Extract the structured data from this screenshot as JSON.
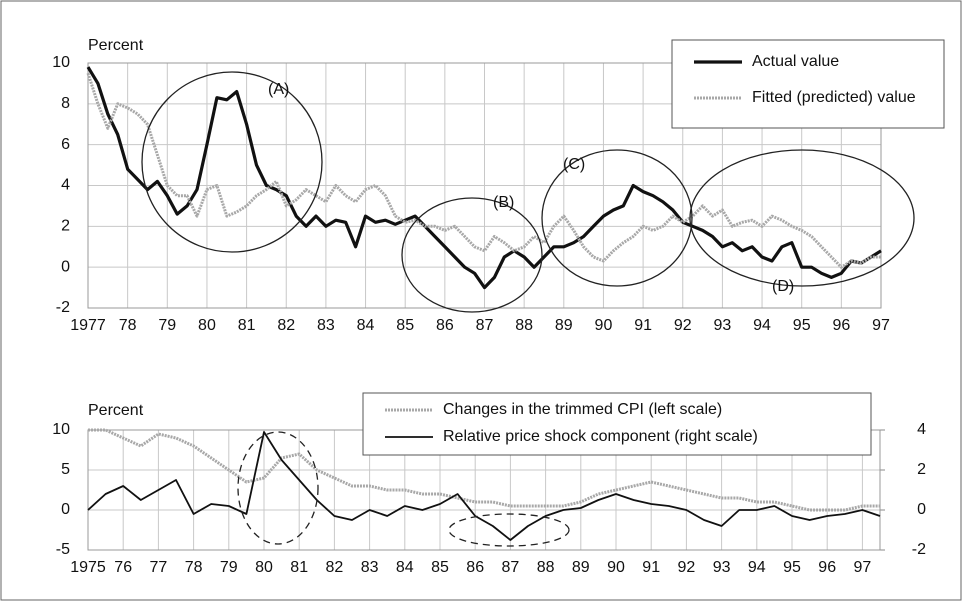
{
  "chart_data": [
    {
      "type": "line",
      "ylabel": "Percent",
      "x": [
        1977,
        1977.25,
        1977.5,
        1977.75,
        1978,
        1978.25,
        1978.5,
        1978.75,
        1979,
        1979.25,
        1979.5,
        1979.75,
        1980,
        1980.25,
        1980.5,
        1980.75,
        1981,
        1981.25,
        1981.5,
        1981.75,
        1982,
        1982.25,
        1982.5,
        1982.75,
        1983,
        1983.25,
        1983.5,
        1983.75,
        1984,
        1984.25,
        1984.5,
        1984.75,
        1985,
        1985.25,
        1985.5,
        1985.75,
        1986,
        1986.25,
        1986.5,
        1986.75,
        1987,
        1987.25,
        1987.5,
        1987.75,
        1988,
        1988.25,
        1988.5,
        1988.75,
        1989,
        1989.25,
        1989.5,
        1989.75,
        1990,
        1990.25,
        1990.5,
        1990.75,
        1991,
        1991.25,
        1991.5,
        1991.75,
        1992,
        1992.25,
        1992.5,
        1992.75,
        1993,
        1993.25,
        1993.5,
        1993.75,
        1994,
        1994.25,
        1994.5,
        1994.75,
        1995,
        1995.25,
        1995.5,
        1995.75,
        1996,
        1996.25,
        1996.5,
        1996.75,
        1997
      ],
      "series": [
        {
          "name": "Actual value",
          "color": "#111111",
          "width": 3.2,
          "values": [
            9.8,
            9.0,
            7.5,
            6.5,
            4.8,
            4.3,
            3.8,
            4.2,
            3.5,
            2.6,
            3.0,
            3.8,
            6.0,
            8.3,
            8.2,
            8.6,
            7.0,
            5.0,
            4.0,
            3.8,
            3.5,
            2.5,
            2.0,
            2.5,
            2.0,
            2.3,
            2.2,
            1.0,
            2.5,
            2.2,
            2.3,
            2.1,
            2.3,
            2.5,
            2.0,
            1.5,
            1.0,
            0.5,
            0.0,
            -0.3,
            -1.0,
            -0.5,
            0.5,
            0.8,
            0.5,
            0.0,
            0.5,
            1.0,
            1.0,
            1.2,
            1.5,
            2.0,
            2.5,
            2.8,
            3.0,
            4.0,
            3.7,
            3.5,
            3.2,
            2.8,
            2.2,
            2.0,
            1.8,
            1.5,
            1.0,
            1.2,
            0.8,
            1.0,
            0.5,
            0.3,
            1.0,
            1.2,
            0.0,
            0.0,
            -0.3,
            -0.5,
            -0.3,
            0.3,
            0.2,
            0.5,
            0.8
          ]
        },
        {
          "name": "Fitted (predicted) value",
          "color": "#a8a8a8",
          "width": 3,
          "values": [
            9.5,
            8.0,
            6.8,
            8.0,
            7.8,
            7.5,
            7.0,
            5.5,
            4.0,
            3.5,
            3.5,
            2.5,
            3.8,
            4.0,
            2.5,
            2.7,
            3.0,
            3.5,
            3.8,
            4.2,
            3.0,
            3.3,
            3.8,
            3.5,
            3.2,
            4.0,
            3.5,
            3.2,
            3.8,
            4.0,
            3.5,
            2.5,
            2.2,
            2.3,
            2.0,
            2.0,
            1.8,
            2.0,
            1.5,
            1.0,
            0.8,
            1.5,
            1.2,
            0.8,
            1.0,
            1.5,
            1.2,
            2.0,
            2.5,
            1.8,
            1.0,
            0.5,
            0.3,
            0.8,
            1.2,
            1.5,
            2.0,
            1.8,
            2.0,
            2.5,
            2.2,
            2.5,
            3.0,
            2.5,
            2.8,
            2.0,
            2.2,
            2.3,
            2.0,
            2.5,
            2.3,
            2.0,
            1.8,
            1.5,
            1.0,
            0.5,
            0.0,
            0.3,
            0.2,
            0.5,
            0.5
          ]
        }
      ],
      "xlim": [
        1977,
        1997
      ],
      "xticks": [
        1977,
        {
          "value": 1978,
          "label": "78"
        },
        {
          "value": 1979,
          "label": "79"
        },
        {
          "value": 1980,
          "label": "80"
        },
        {
          "value": 1981,
          "label": "81"
        },
        {
          "value": 1982,
          "label": "82"
        },
        {
          "value": 1983,
          "label": "83"
        },
        {
          "value": 1984,
          "label": "84"
        },
        {
          "value": 1985,
          "label": "85"
        },
        {
          "value": 1986,
          "label": "86"
        },
        {
          "value": 1987,
          "label": "87"
        },
        {
          "value": 1988,
          "label": "88"
        },
        {
          "value": 1989,
          "label": "89"
        },
        {
          "value": 1990,
          "label": "90"
        },
        {
          "value": 1991,
          "label": "91"
        },
        {
          "value": 1992,
          "label": "92"
        },
        {
          "value": 1993,
          "label": "93"
        },
        {
          "value": 1994,
          "label": "94"
        },
        {
          "value": 1995,
          "label": "95"
        },
        {
          "value": 1996,
          "label": "96"
        },
        {
          "value": 1997,
          "label": "97"
        }
      ],
      "ylim": [
        -2,
        10
      ],
      "yticks": [
        -2,
        0,
        2,
        4,
        6,
        8,
        10
      ],
      "grid": true,
      "annotations": [
        "(A)",
        "(B)",
        "(C)",
        "(D)"
      ]
    },
    {
      "type": "line",
      "ylabel": "Percent",
      "x": [
        1975,
        1975.5,
        1976,
        1976.5,
        1977,
        1977.5,
        1978,
        1978.5,
        1979,
        1979.5,
        1980,
        1980.5,
        1981,
        1981.5,
        1982,
        1982.5,
        1983,
        1983.5,
        1984,
        1984.5,
        1985,
        1985.5,
        1986,
        1986.5,
        1987,
        1987.5,
        1988,
        1988.5,
        1989,
        1989.5,
        1990,
        1990.5,
        1991,
        1991.5,
        1992,
        1992.5,
        1993,
        1993.5,
        1994,
        1994.5,
        1995,
        1995.5,
        1996,
        1996.5,
        1997,
        1997.5
      ],
      "series": [
        {
          "name": "Changes in the trimmed CPI (left scale)",
          "color": "#a8a8a8",
          "width": 3,
          "values": [
            10,
            10,
            9,
            8,
            9.5,
            9,
            8,
            6.5,
            5,
            3.5,
            4,
            6.5,
            7,
            5,
            4,
            3,
            3,
            2.5,
            2.5,
            2,
            2,
            1.5,
            1,
            1,
            0.5,
            0.5,
            0.5,
            0.5,
            1,
            2,
            2.5,
            3,
            3.5,
            3,
            2.5,
            2,
            1.5,
            1.5,
            1,
            1,
            0.5,
            0,
            0,
            0,
            0.5,
            0.5
          ]
        },
        {
          "name": "Relative price shock component (right scale)",
          "color": "#111111",
          "width": 1.8,
          "axis": "y2",
          "values": [
            0,
            0.8,
            1.2,
            0.5,
            1.0,
            1.5,
            -0.2,
            0.3,
            0.2,
            -0.2,
            3.9,
            2.5,
            1.5,
            0.5,
            -0.3,
            -0.5,
            0,
            -0.3,
            0.2,
            0,
            0.3,
            0.8,
            -0.3,
            -0.8,
            -1.5,
            -0.8,
            -0.3,
            0,
            0.1,
            0.5,
            0.8,
            0.5,
            0.3,
            0.2,
            0,
            -0.5,
            -0.8,
            0,
            0,
            0.2,
            -0.3,
            -0.5,
            -0.3,
            -0.2,
            0,
            -0.3
          ]
        }
      ],
      "xlim": [
        1975,
        1997.5
      ],
      "xticks": [
        1975,
        {
          "value": 1976,
          "label": "76"
        },
        {
          "value": 1977,
          "label": "77"
        },
        {
          "value": 1978,
          "label": "78"
        },
        {
          "value": 1979,
          "label": "79"
        },
        {
          "value": 1980,
          "label": "80"
        },
        {
          "value": 1981,
          "label": "81"
        },
        {
          "value": 1982,
          "label": "82"
        },
        {
          "value": 1983,
          "label": "83"
        },
        {
          "value": 1984,
          "label": "84"
        },
        {
          "value": 1985,
          "label": "85"
        },
        {
          "value": 1986,
          "label": "86"
        },
        {
          "value": 1987,
          "label": "87"
        },
        {
          "value": 1988,
          "label": "88"
        },
        {
          "value": 1989,
          "label": "89"
        },
        {
          "value": 1990,
          "label": "90"
        },
        {
          "value": 1991,
          "label": "91"
        },
        {
          "value": 1992,
          "label": "92"
        },
        {
          "value": 1993,
          "label": "93"
        },
        {
          "value": 1994,
          "label": "94"
        },
        {
          "value": 1995,
          "label": "95"
        },
        {
          "value": 1996,
          "label": "96"
        },
        {
          "value": 1997,
          "label": "97"
        }
      ],
      "ylim": [
        -5,
        10
      ],
      "yticks": [
        -5,
        0,
        5,
        10
      ],
      "y2lim": [
        -2,
        4
      ],
      "y2ticks": [
        -2,
        0,
        2,
        4
      ],
      "grid": true
    }
  ]
}
